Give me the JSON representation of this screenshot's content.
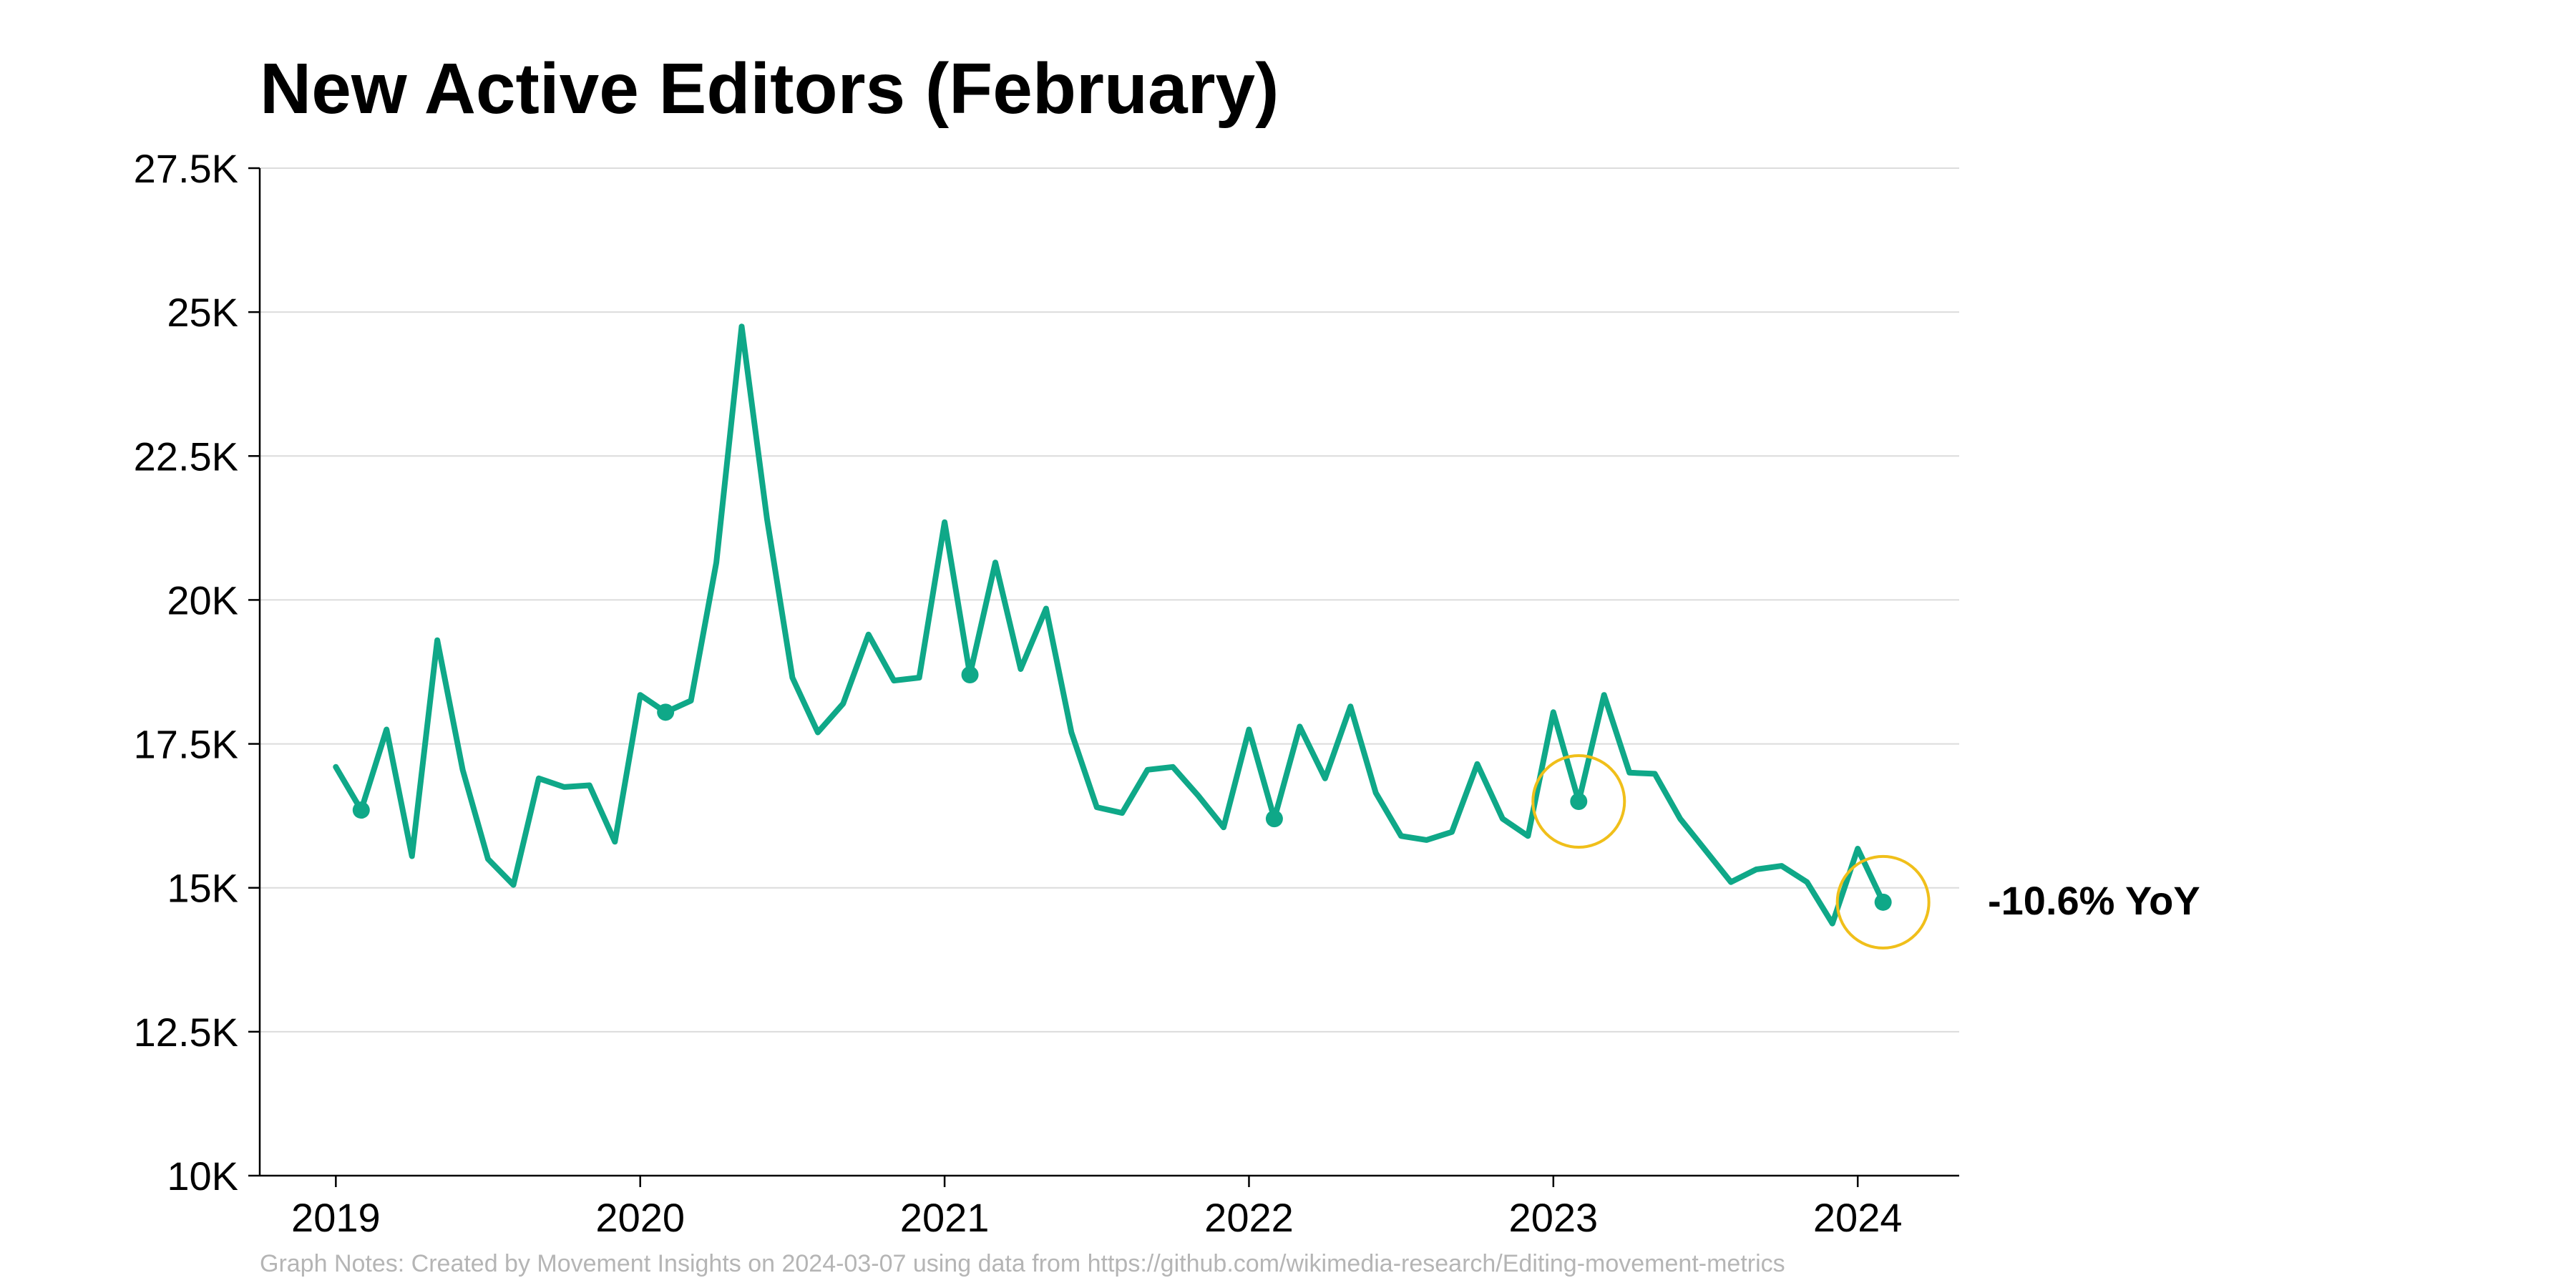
{
  "colors": {
    "series": "#0fa888",
    "highlight_circle": "#f0bf1a",
    "note": "#b5b5b5"
  },
  "chart_data": {
    "type": "line",
    "title": "New Active Editors (February)",
    "xlabel": "",
    "ylabel": "",
    "xlim": [
      "2018-10",
      "2024-05"
    ],
    "ylim": [
      10000,
      27500
    ],
    "x_ticks": [
      {
        "date": "2019-01",
        "label": "2019"
      },
      {
        "date": "2020-01",
        "label": "2020"
      },
      {
        "date": "2021-01",
        "label": "2021"
      },
      {
        "date": "2022-01",
        "label": "2022"
      },
      {
        "date": "2023-01",
        "label": "2023"
      },
      {
        "date": "2024-01",
        "label": "2024"
      }
    ],
    "y_ticks": [
      {
        "value": 10000,
        "label": "10K"
      },
      {
        "value": 12500,
        "label": "12.5K"
      },
      {
        "value": 15000,
        "label": "15K"
      },
      {
        "value": 17500,
        "label": "17.5K"
      },
      {
        "value": 20000,
        "label": "20K"
      },
      {
        "value": 22500,
        "label": "22.5K"
      },
      {
        "value": 25000,
        "label": "25K"
      },
      {
        "value": 27500,
        "label": "27.5K"
      }
    ],
    "grid": true,
    "x": [
      "2019-01",
      "2019-02",
      "2019-03",
      "2019-04",
      "2019-05",
      "2019-06",
      "2019-07",
      "2019-08",
      "2019-09",
      "2019-10",
      "2019-11",
      "2019-12",
      "2020-01",
      "2020-02",
      "2020-03",
      "2020-04",
      "2020-05",
      "2020-06",
      "2020-07",
      "2020-08",
      "2020-09",
      "2020-10",
      "2020-11",
      "2020-12",
      "2021-01",
      "2021-02",
      "2021-03",
      "2021-04",
      "2021-05",
      "2021-06",
      "2021-07",
      "2021-08",
      "2021-09",
      "2021-10",
      "2021-11",
      "2021-12",
      "2022-01",
      "2022-02",
      "2022-03",
      "2022-04",
      "2022-05",
      "2022-06",
      "2022-07",
      "2022-08",
      "2022-09",
      "2022-10",
      "2022-11",
      "2022-12",
      "2023-01",
      "2023-02",
      "2023-03",
      "2023-04",
      "2023-05",
      "2023-06",
      "2023-07",
      "2023-08",
      "2023-09",
      "2023-10",
      "2023-11",
      "2023-12",
      "2024-01",
      "2024-02"
    ],
    "series": [
      {
        "values": [
          17100,
          16350,
          17750,
          15550,
          19300,
          17050,
          15500,
          15050,
          16900,
          16750,
          16780,
          15800,
          18350,
          18050,
          18250,
          20650,
          24750,
          21400,
          18650,
          17700,
          18200,
          19400,
          18600,
          18650,
          21350,
          18700,
          20650,
          18800,
          19850,
          17700,
          16400,
          16300,
          17050,
          17100,
          16600,
          16050,
          17750,
          16200,
          17800,
          16900,
          18150,
          16650,
          15900,
          15830,
          15970,
          17150,
          16200,
          15900,
          18050,
          16500,
          18350,
          17000,
          16980,
          16200,
          15650,
          15100,
          15320,
          15380,
          15100,
          14380,
          15680,
          14750
        ]
      }
    ],
    "highlighted_points": [
      "2019-02",
      "2020-02",
      "2021-02",
      "2022-02",
      "2023-02",
      "2024-02"
    ],
    "circled_points": [
      "2023-02",
      "2024-02"
    ],
    "annotation": "-10.6% YoY",
    "note": "Graph Notes: Created by Movement Insights  on 2024-03-07 using data from https://github.com/wikimedia-research/Editing-movement-metrics"
  }
}
